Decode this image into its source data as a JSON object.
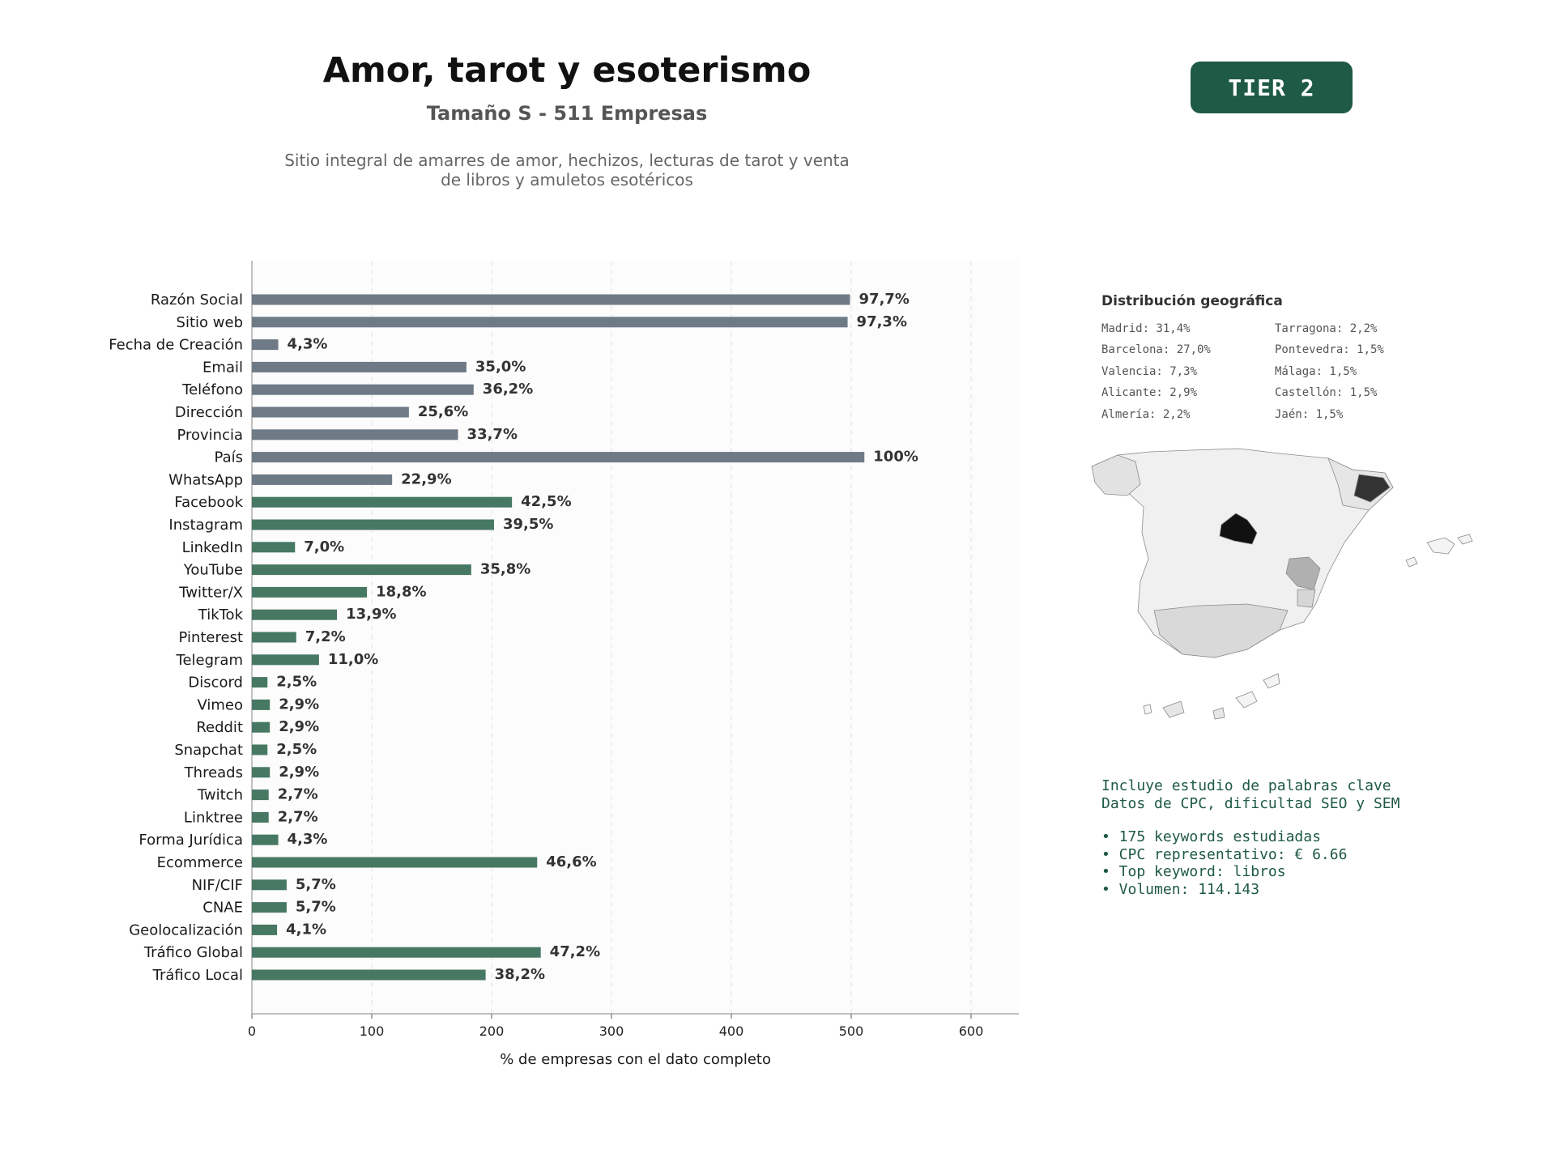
{
  "header": {
    "title": "Amor, tarot y esoterismo",
    "subtitle": "Tamaño S - 511 Empresas",
    "description_line1": "Sitio integral de amarres de amor, hechizos, lecturas de tarot y venta",
    "description_line2": "de libros y amuletos esotéricos",
    "tier": "TIER 2"
  },
  "colors": {
    "contact_bar": "#6e7a86",
    "social_bar": "#477864",
    "tier_bg": "#1e5a45",
    "plot_bg": "#fcfcfc"
  },
  "chart_data": {
    "type": "bar",
    "orientation": "horizontal",
    "categories": [
      "Razón Social",
      "Sitio web",
      "Fecha de Creación",
      "Email",
      "Teléfono",
      "Dirección",
      "Provincia",
      "País",
      "WhatsApp",
      "Facebook",
      "Instagram",
      "LinkedIn",
      "YouTube",
      "Twitter/X",
      "TikTok",
      "Pinterest",
      "Telegram",
      "Discord",
      "Vimeo",
      "Reddit",
      "Snapchat",
      "Threads",
      "Twitch",
      "Linktree",
      "Forma Jurídica",
      "Ecommerce",
      "NIF/CIF",
      "CNAE",
      "Geolocalización",
      "Tráfico Global",
      "Tráfico Local"
    ],
    "values": [
      499,
      497,
      22,
      179,
      185,
      131,
      172,
      511,
      117,
      217,
      202,
      36,
      183,
      96,
      71,
      37,
      56,
      13,
      15,
      15,
      13,
      15,
      14,
      14,
      22,
      238,
      29,
      29,
      21,
      241,
      195
    ],
    "data_labels": [
      "97,7%",
      "97,3%",
      "4,3%",
      "35,0%",
      "36,2%",
      "25,6%",
      "33,7%",
      "100%",
      "22,9%",
      "42,5%",
      "39,5%",
      "7,0%",
      "35,8%",
      "18,8%",
      "13,9%",
      "7,2%",
      "11,0%",
      "2,5%",
      "2,9%",
      "2,9%",
      "2,5%",
      "2,9%",
      "2,7%",
      "2,7%",
      "4,3%",
      "46,6%",
      "5,7%",
      "5,7%",
      "4,1%",
      "47,2%",
      "38,2%"
    ],
    "groups": [
      "contact",
      "contact",
      "contact",
      "contact",
      "contact",
      "contact",
      "contact",
      "contact",
      "contact",
      "social",
      "social",
      "social",
      "social",
      "social",
      "social",
      "social",
      "social",
      "social",
      "social",
      "social",
      "social",
      "social",
      "social",
      "social",
      "social",
      "social",
      "social",
      "social",
      "social",
      "social",
      "social"
    ],
    "xlim": [
      0,
      640
    ],
    "xticks": [
      0,
      100,
      200,
      300,
      400,
      500,
      600
    ],
    "xlabel": "% de empresas con el dato completo",
    "grid": "vertical dashed"
  },
  "geo": {
    "title": "Distribución geográfica",
    "items": [
      "Madrid: 31,4%",
      "Barcelona: 27,0%",
      "Valencia: 7,3%",
      "Alicante: 2,9%",
      "Almería: 2,2%",
      "Tarragona: 2,2%",
      "Pontevedra: 1,5%",
      "Málaga: 1,5%",
      "Castellón: 1,5%",
      "Jaén: 1,5%"
    ]
  },
  "keywords": {
    "line1": "Incluye estudio de palabras clave",
    "line2": "Datos de CPC, dificultad SEO y SEM",
    "bullets": [
      "• 175 keywords estudiadas",
      "• CPC representativo: € 6.66",
      "• Top keyword: libros",
      "• Volumen: 114.143"
    ]
  }
}
